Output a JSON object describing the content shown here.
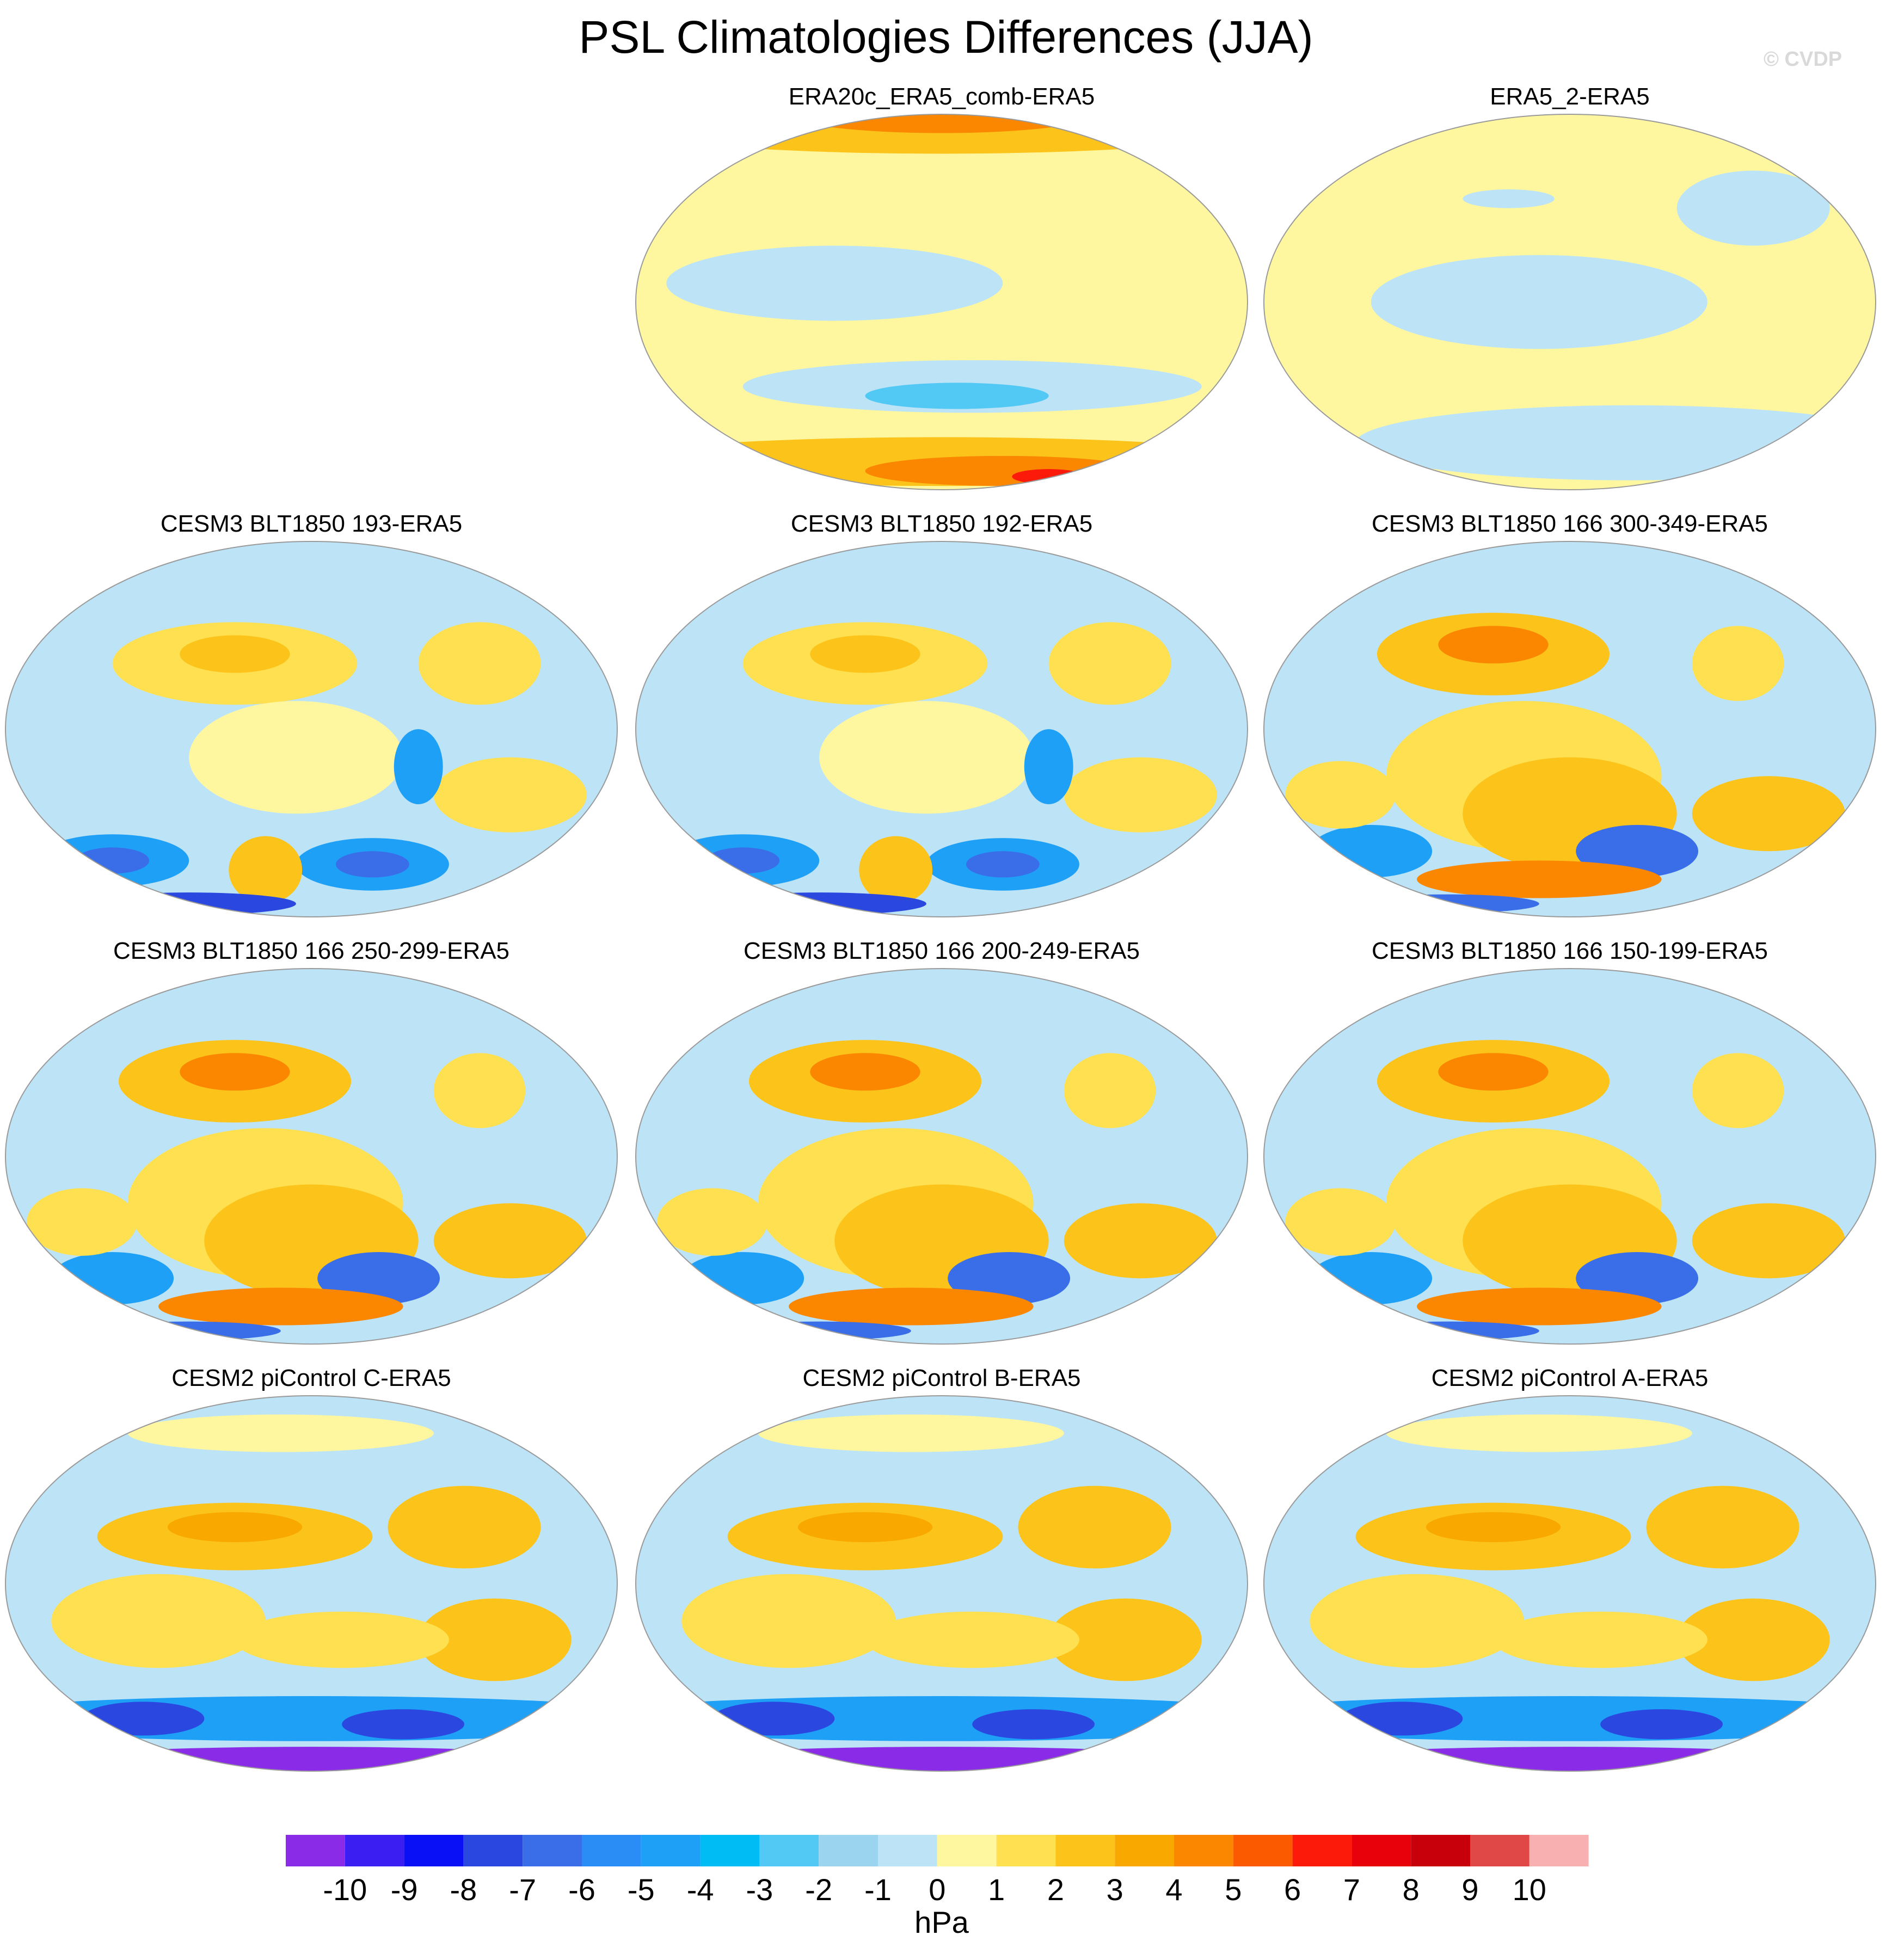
{
  "title": "PSL Climatologies Differences (JJA)",
  "watermark": "© CVDP",
  "units": "hPa",
  "panels": [
    {
      "label": "ERA20c_ERA5_comb-ERA5",
      "row": 0,
      "col": 1,
      "scheme": "era20c"
    },
    {
      "label": "ERA5_2-ERA5",
      "row": 0,
      "col": 2,
      "scheme": "era5_2"
    },
    {
      "label": "CESM3 BLT1850 193-ERA5",
      "row": 1,
      "col": 0,
      "scheme": "cesm3a"
    },
    {
      "label": "CESM3 BLT1850 192-ERA5",
      "row": 1,
      "col": 1,
      "scheme": "cesm3a"
    },
    {
      "label": "CESM3 BLT1850 166 300-349-ERA5",
      "row": 1,
      "col": 2,
      "scheme": "cesm3b"
    },
    {
      "label": "CESM3 BLT1850 166 250-299-ERA5",
      "row": 2,
      "col": 0,
      "scheme": "cesm3b"
    },
    {
      "label": "CESM3 BLT1850 166 200-249-ERA5",
      "row": 2,
      "col": 1,
      "scheme": "cesm3b"
    },
    {
      "label": "CESM3 BLT1850 166 150-199-ERA5",
      "row": 2,
      "col": 2,
      "scheme": "cesm3b"
    },
    {
      "label": "CESM2 piControl C-ERA5",
      "row": 3,
      "col": 0,
      "scheme": "cesm2"
    },
    {
      "label": "CESM2 piControl B-ERA5",
      "row": 3,
      "col": 1,
      "scheme": "cesm2"
    },
    {
      "label": "CESM2 piControl A-ERA5",
      "row": 3,
      "col": 2,
      "scheme": "cesm2"
    }
  ],
  "colorbar": {
    "ticks": [
      "-10",
      "-9",
      "-8",
      "-7",
      "-6",
      "-5",
      "-4",
      "-3",
      "-2",
      "-1",
      "0",
      "1",
      "2",
      "3",
      "4",
      "5",
      "6",
      "7",
      "8",
      "9",
      "10"
    ],
    "colors": [
      "#8a2be8",
      "#3a1ef2",
      "#0a10f5",
      "#2a48e0",
      "#3a6ee8",
      "#2a8cf5",
      "#1fa0f7",
      "#00bcf5",
      "#52c8f5",
      "#9ad4ee",
      "#bde3f6",
      "#fff7a0",
      "#ffe050",
      "#fcc41a",
      "#f9a800",
      "#fb8600",
      "#fc5a00",
      "#fc1a0a",
      "#e8000a",
      "#c8000c",
      "#e04848",
      "#f8b0b0"
    ]
  }
}
